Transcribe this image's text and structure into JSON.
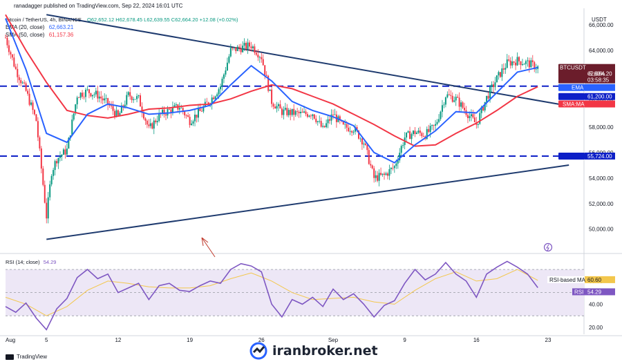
{
  "header": {
    "publisher": "ranadagger published on TradingView.com, Sep 22, 2024 16:01 UTC",
    "symbol_line": "Bitcoin / TetherUS, 4h, BINANCE",
    "ohlc": "O62,652.12 H62,678.45 L62,639.55 C62,664.20 +12.08 (+0.02%)",
    "ema_legend": "EMA (20, close)",
    "ema_value": "62,663.21",
    "sma_legend": "SMA (50, close)",
    "sma_value": "61,157.36",
    "currency": "USDT"
  },
  "colors": {
    "up": "#089981",
    "down": "#f23645",
    "ema": "#2962ff",
    "sma": "#f23645",
    "trendline": "#1e3a6e",
    "hline": "#0d1fc7",
    "rsi": "#7e57c2",
    "rsi_ma": "#f3c74c",
    "rsi_band": "#ede7f6"
  },
  "price_labels": {
    "last": {
      "name": "BTCUSDT",
      "price": "62,664.20",
      "change": "-5.60%",
      "timer": "03:58:35"
    },
    "ema": {
      "name": "EMA",
      "value": "62,663.21"
    },
    "level_high": "61,200.00",
    "sma": {
      "name": "SMA:MA",
      "value": "61,157.36"
    },
    "level_low": "55,724.00"
  },
  "rsi_panel": {
    "legend": "RSI (14; close)",
    "legend_value": "54.29",
    "ma_label": "RSI-based MA",
    "ma_value": "60.60",
    "rsi_label": "RSI",
    "rsi_value": "54.29",
    "ticks": [
      "60.00",
      "40.00",
      "20.00"
    ]
  },
  "footer": {
    "brand": "TradingView",
    "watermark": "iranbroker.net"
  },
  "chart_data": {
    "type": "candlestick",
    "y_axis_ticks": [
      50000,
      52000,
      54000,
      56000,
      58000,
      60000,
      62000,
      64000,
      66000
    ],
    "y_axis_tick_labels": [
      "50,000.00",
      "52,000.00",
      "54,000.00",
      "56,000.00",
      "58,000.00",
      "60,000.00",
      "62,000.00",
      "64,000.00",
      "66,000.00"
    ],
    "ylim": [
      48200,
      67300
    ],
    "x_axis_ticks": [
      "Aug",
      "5",
      "12",
      "19",
      "26",
      "Sep",
      "9",
      "16",
      "23"
    ],
    "x_tick_dates": [
      "2024-08-01",
      "2024-08-05",
      "2024-08-12",
      "2024-08-19",
      "2024-08-26",
      "2024-09-02",
      "2024-09-09",
      "2024-09-16",
      "2024-09-23"
    ],
    "horizontal_levels": [
      61200,
      55724
    ],
    "price_path": [
      [
        "2024-08-01",
        65000
      ],
      [
        "2024-08-02",
        62500
      ],
      [
        "2024-08-03",
        60800
      ],
      [
        "2024-08-04",
        58500
      ],
      [
        "2024-08-05",
        51000
      ],
      [
        "2024-08-05T12",
        54500
      ],
      [
        "2024-08-06",
        55500
      ],
      [
        "2024-08-07",
        56200
      ],
      [
        "2024-08-08",
        60500
      ],
      [
        "2024-08-09",
        60800
      ],
      [
        "2024-08-10",
        60500
      ],
      [
        "2024-08-11",
        59800
      ],
      [
        "2024-08-12",
        58800
      ],
      [
        "2024-08-13",
        60500
      ],
      [
        "2024-08-14",
        60200
      ],
      [
        "2024-08-15",
        57800
      ],
      [
        "2024-08-16",
        58900
      ],
      [
        "2024-08-17",
        59300
      ],
      [
        "2024-08-18",
        59600
      ],
      [
        "2024-08-19",
        58500
      ],
      [
        "2024-08-20",
        59200
      ],
      [
        "2024-08-21",
        60100
      ],
      [
        "2024-08-22",
        61200
      ],
      [
        "2024-08-23",
        64000
      ],
      [
        "2024-08-24",
        64200
      ],
      [
        "2024-08-25",
        64400
      ],
      [
        "2024-08-26",
        63500
      ],
      [
        "2024-08-27",
        60000
      ],
      [
        "2024-08-28",
        59200
      ],
      [
        "2024-08-29",
        59100
      ],
      [
        "2024-08-30",
        59000
      ],
      [
        "2024-08-31",
        59100
      ],
      [
        "2024-09-01",
        57800
      ],
      [
        "2024-09-02",
        59000
      ],
      [
        "2024-09-03",
        58000
      ],
      [
        "2024-09-04",
        57900
      ],
      [
        "2024-09-05",
        56800
      ],
      [
        "2024-09-06",
        54000
      ],
      [
        "2024-09-07",
        54200
      ],
      [
        "2024-09-08",
        54900
      ],
      [
        "2024-09-09",
        57200
      ],
      [
        "2024-09-10",
        57600
      ],
      [
        "2024-09-11",
        57400
      ],
      [
        "2024-09-12",
        58100
      ],
      [
        "2024-09-13",
        60500
      ],
      [
        "2024-09-14",
        60200
      ],
      [
        "2024-09-15",
        59200
      ],
      [
        "2024-09-16",
        58200
      ],
      [
        "2024-09-17",
        60300
      ],
      [
        "2024-09-18",
        61800
      ],
      [
        "2024-09-19",
        63000
      ],
      [
        "2024-09-20",
        63200
      ],
      [
        "2024-09-21",
        63000
      ],
      [
        "2024-09-22",
        62664
      ]
    ],
    "ema_path": [
      [
        "2024-08-01",
        66500
      ],
      [
        "2024-08-03",
        62500
      ],
      [
        "2024-08-05",
        57500
      ],
      [
        "2024-08-07",
        56800
      ],
      [
        "2024-08-09",
        59000
      ],
      [
        "2024-08-11",
        59800
      ],
      [
        "2024-08-13",
        59500
      ],
      [
        "2024-08-15",
        59000
      ],
      [
        "2024-08-17",
        59100
      ],
      [
        "2024-08-19",
        59300
      ],
      [
        "2024-08-21",
        59700
      ],
      [
        "2024-08-23",
        61300
      ],
      [
        "2024-08-25",
        62800
      ],
      [
        "2024-08-27",
        61600
      ],
      [
        "2024-08-29",
        60000
      ],
      [
        "2024-08-31",
        59300
      ],
      [
        "2024-09-02",
        58800
      ],
      [
        "2024-09-04",
        58100
      ],
      [
        "2024-09-06",
        56000
      ],
      [
        "2024-09-08",
        55200
      ],
      [
        "2024-09-10",
        56600
      ],
      [
        "2024-09-12",
        57700
      ],
      [
        "2024-09-14",
        59200
      ],
      [
        "2024-09-16",
        59100
      ],
      [
        "2024-09-18",
        60700
      ],
      [
        "2024-09-20",
        62300
      ],
      [
        "2024-09-22",
        62663
      ]
    ],
    "sma_path": [
      [
        "2024-08-01",
        66800
      ],
      [
        "2024-08-03",
        64000
      ],
      [
        "2024-08-05",
        61500
      ],
      [
        "2024-08-07",
        59300
      ],
      [
        "2024-08-09",
        58900
      ],
      [
        "2024-08-11",
        58700
      ],
      [
        "2024-08-13",
        59000
      ],
      [
        "2024-08-15",
        59400
      ],
      [
        "2024-08-17",
        59500
      ],
      [
        "2024-08-19",
        59700
      ],
      [
        "2024-08-21",
        59800
      ],
      [
        "2024-08-23",
        60200
      ],
      [
        "2024-08-25",
        60800
      ],
      [
        "2024-08-27",
        61300
      ],
      [
        "2024-08-29",
        61000
      ],
      [
        "2024-08-31",
        60400
      ],
      [
        "2024-09-02",
        59800
      ],
      [
        "2024-09-04",
        59000
      ],
      [
        "2024-09-06",
        58200
      ],
      [
        "2024-09-08",
        57300
      ],
      [
        "2024-09-10",
        56500
      ],
      [
        "2024-09-12",
        56600
      ],
      [
        "2024-09-14",
        57500
      ],
      [
        "2024-09-16",
        58300
      ],
      [
        "2024-09-18",
        59300
      ],
      [
        "2024-09-20",
        60400
      ],
      [
        "2024-09-22",
        61157
      ]
    ],
    "trendlines": [
      {
        "from": [
          "2024-08-05",
          66800
        ],
        "to": [
          "2024-09-22",
          60300
        ]
      },
      {
        "from": [
          "2024-08-05",
          49200
        ],
        "to": [
          "2024-09-22",
          54800
        ]
      }
    ],
    "rsi": {
      "ylim": [
        14,
        82
      ],
      "ticks": [
        60,
        40,
        20
      ],
      "band": [
        30,
        70
      ],
      "values": [
        [
          "2024-08-01",
          38
        ],
        [
          "2024-08-02",
          33
        ],
        [
          "2024-08-03",
          41
        ],
        [
          "2024-08-04",
          28
        ],
        [
          "2024-08-05",
          18
        ],
        [
          "2024-08-06",
          36
        ],
        [
          "2024-08-07",
          45
        ],
        [
          "2024-08-08",
          63
        ],
        [
          "2024-08-09",
          70
        ],
        [
          "2024-08-10",
          62
        ],
        [
          "2024-08-11",
          66
        ],
        [
          "2024-08-12",
          50
        ],
        [
          "2024-08-13",
          54
        ],
        [
          "2024-08-14",
          58
        ],
        [
          "2024-08-15",
          44
        ],
        [
          "2024-08-16",
          56
        ],
        [
          "2024-08-17",
          58
        ],
        [
          "2024-08-18",
          52
        ],
        [
          "2024-08-19",
          51
        ],
        [
          "2024-08-20",
          56
        ],
        [
          "2024-08-21",
          60
        ],
        [
          "2024-08-22",
          58
        ],
        [
          "2024-08-23",
          70
        ],
        [
          "2024-08-24",
          75
        ],
        [
          "2024-08-25",
          73
        ],
        [
          "2024-08-26",
          68
        ],
        [
          "2024-08-27",
          40
        ],
        [
          "2024-08-28",
          29
        ],
        [
          "2024-08-29",
          44
        ],
        [
          "2024-08-30",
          40
        ],
        [
          "2024-08-31",
          46
        ],
        [
          "2024-09-01",
          38
        ],
        [
          "2024-09-02",
          53
        ],
        [
          "2024-09-03",
          44
        ],
        [
          "2024-09-04",
          49
        ],
        [
          "2024-09-05",
          40
        ],
        [
          "2024-09-06",
          29
        ],
        [
          "2024-09-07",
          39
        ],
        [
          "2024-09-08",
          43
        ],
        [
          "2024-09-09",
          58
        ],
        [
          "2024-09-10",
          70
        ],
        [
          "2024-09-11",
          61
        ],
        [
          "2024-09-12",
          66
        ],
        [
          "2024-09-13",
          76
        ],
        [
          "2024-09-14",
          66
        ],
        [
          "2024-09-15",
          60
        ],
        [
          "2024-09-16",
          46
        ],
        [
          "2024-09-17",
          66
        ],
        [
          "2024-09-18",
          72
        ],
        [
          "2024-09-19",
          77
        ],
        [
          "2024-09-20",
          72
        ],
        [
          "2024-09-21",
          66
        ],
        [
          "2024-09-22",
          54.29
        ]
      ],
      "ma_values": [
        [
          "2024-08-01",
          46
        ],
        [
          "2024-08-03",
          40
        ],
        [
          "2024-08-05",
          30
        ],
        [
          "2024-08-07",
          38
        ],
        [
          "2024-08-09",
          52
        ],
        [
          "2024-08-11",
          60
        ],
        [
          "2024-08-13",
          58
        ],
        [
          "2024-08-15",
          55
        ],
        [
          "2024-08-17",
          54
        ],
        [
          "2024-08-19",
          54
        ],
        [
          "2024-08-21",
          56
        ],
        [
          "2024-08-23",
          62
        ],
        [
          "2024-08-25",
          67
        ],
        [
          "2024-08-27",
          60
        ],
        [
          "2024-08-29",
          50
        ],
        [
          "2024-08-31",
          44
        ],
        [
          "2024-09-02",
          45
        ],
        [
          "2024-09-04",
          46
        ],
        [
          "2024-09-06",
          42
        ],
        [
          "2024-09-08",
          40
        ],
        [
          "2024-09-10",
          52
        ],
        [
          "2024-09-12",
          62
        ],
        [
          "2024-09-14",
          68
        ],
        [
          "2024-09-16",
          60
        ],
        [
          "2024-09-18",
          62
        ],
        [
          "2024-09-20",
          70
        ],
        [
          "2024-09-22",
          60.6
        ]
      ]
    }
  }
}
